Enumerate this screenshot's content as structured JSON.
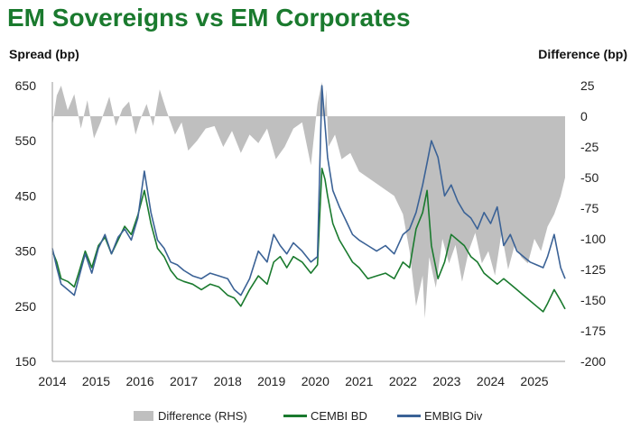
{
  "chart_data": {
    "type": "line",
    "title": "EM Sovereigns vs EM Corporates",
    "ylabel": "Spread (bp)",
    "y2label": "Difference (bp)",
    "ylim": [
      150,
      650
    ],
    "y2lim": [
      -200,
      25
    ],
    "yticks": [
      650,
      550,
      450,
      350,
      250,
      150
    ],
    "y2ticks": [
      25,
      0,
      -25,
      -50,
      -75,
      -100,
      -125,
      -150,
      -175,
      -200
    ],
    "xlim": [
      2014,
      2025.7
    ],
    "xticks": [
      2014,
      2015,
      2016,
      2017,
      2018,
      2019,
      2020,
      2021,
      2022,
      2023,
      2024,
      2025
    ],
    "colors": {
      "difference": "#bfbfbf",
      "cembi": "#1a7a2e",
      "embig": "#3b6296",
      "title": "#1a7a2e"
    },
    "series": [
      {
        "name": "Difference (RHS)",
        "kind": "area",
        "axis": "right",
        "x": [
          2014.0,
          2014.1,
          2014.2,
          2014.35,
          2014.5,
          2014.65,
          2014.8,
          2014.95,
          2015.1,
          2015.3,
          2015.45,
          2015.6,
          2015.75,
          2015.9,
          2016.0,
          2016.15,
          2016.3,
          2016.45,
          2016.6,
          2016.8,
          2016.95,
          2017.1,
          2017.3,
          2017.5,
          2017.7,
          2017.9,
          2018.1,
          2018.3,
          2018.5,
          2018.7,
          2018.9,
          2019.1,
          2019.3,
          2019.5,
          2019.7,
          2019.9,
          2020.05,
          2020.15,
          2020.2,
          2020.25,
          2020.3,
          2020.45,
          2020.6,
          2020.8,
          2021.0,
          2021.2,
          2021.4,
          2021.6,
          2021.8,
          2022.0,
          2022.15,
          2022.3,
          2022.45,
          2022.5,
          2022.6,
          2022.75,
          2022.9,
          2023.05,
          2023.2,
          2023.35,
          2023.5,
          2023.65,
          2023.8,
          2023.95,
          2024.1,
          2024.25,
          2024.4,
          2024.55,
          2024.7,
          2024.85,
          2025.0,
          2025.15,
          2025.3,
          2025.45,
          2025.6,
          2025.7
        ],
        "values": [
          -8,
          17,
          25,
          5,
          18,
          -10,
          13,
          -18,
          -5,
          16,
          -8,
          6,
          12,
          -15,
          -3,
          10,
          -8,
          22,
          5,
          -15,
          -5,
          -28,
          -20,
          -10,
          -8,
          -25,
          -12,
          -30,
          -15,
          -22,
          -10,
          -35,
          -25,
          -10,
          -5,
          -40,
          10,
          28,
          -5,
          22,
          -25,
          -15,
          -35,
          -30,
          -45,
          -50,
          -55,
          -60,
          -65,
          -80,
          -110,
          -155,
          -130,
          -165,
          -115,
          -140,
          -100,
          -120,
          -105,
          -135,
          -110,
          -95,
          -120,
          -110,
          -130,
          -95,
          -125,
          -105,
          -115,
          -120,
          -100,
          -110,
          -90,
          -80,
          -65,
          -50
        ]
      },
      {
        "name": "CEMBI BD",
        "kind": "line",
        "axis": "left",
        "x": [
          2014.0,
          2014.1,
          2014.2,
          2014.35,
          2014.5,
          2014.6,
          2014.75,
          2014.9,
          2015.05,
          2015.2,
          2015.35,
          2015.5,
          2015.65,
          2015.8,
          2015.95,
          2016.1,
          2016.25,
          2016.4,
          2016.55,
          2016.7,
          2016.85,
          2017.0,
          2017.2,
          2017.4,
          2017.6,
          2017.8,
          2018.0,
          2018.15,
          2018.3,
          2018.5,
          2018.7,
          2018.9,
          2019.05,
          2019.2,
          2019.35,
          2019.5,
          2019.7,
          2019.9,
          2020.05,
          2020.15,
          2020.22,
          2020.28,
          2020.4,
          2020.55,
          2020.7,
          2020.85,
          2021.0,
          2021.2,
          2021.4,
          2021.6,
          2021.8,
          2022.0,
          2022.15,
          2022.3,
          2022.45,
          2022.55,
          2022.65,
          2022.8,
          2022.95,
          2023.1,
          2023.25,
          2023.4,
          2023.55,
          2023.7,
          2023.85,
          2024.0,
          2024.15,
          2024.3,
          2024.45,
          2024.6,
          2024.75,
          2024.9,
          2025.05,
          2025.2,
          2025.3,
          2025.45,
          2025.6,
          2025.7
        ],
        "values": [
          350,
          330,
          300,
          295,
          285,
          310,
          350,
          320,
          360,
          375,
          345,
          370,
          395,
          380,
          415,
          460,
          400,
          355,
          340,
          315,
          300,
          295,
          290,
          280,
          290,
          285,
          270,
          265,
          250,
          280,
          305,
          290,
          330,
          340,
          320,
          340,
          330,
          310,
          325,
          500,
          480,
          450,
          400,
          370,
          350,
          330,
          320,
          300,
          305,
          310,
          300,
          330,
          320,
          390,
          420,
          460,
          360,
          300,
          330,
          380,
          370,
          360,
          340,
          330,
          310,
          300,
          290,
          300,
          290,
          280,
          270,
          260,
          250,
          240,
          255,
          280,
          260,
          245
        ]
      },
      {
        "name": "EMBIG Div",
        "kind": "line",
        "axis": "left",
        "x": [
          2014.0,
          2014.1,
          2014.2,
          2014.35,
          2014.5,
          2014.6,
          2014.75,
          2014.9,
          2015.05,
          2015.2,
          2015.35,
          2015.5,
          2015.65,
          2015.8,
          2015.95,
          2016.1,
          2016.25,
          2016.4,
          2016.55,
          2016.7,
          2016.85,
          2017.0,
          2017.2,
          2017.4,
          2017.6,
          2017.8,
          2018.0,
          2018.15,
          2018.3,
          2018.5,
          2018.7,
          2018.9,
          2019.05,
          2019.2,
          2019.35,
          2019.5,
          2019.7,
          2019.9,
          2020.05,
          2020.15,
          2020.22,
          2020.28,
          2020.4,
          2020.55,
          2020.7,
          2020.85,
          2021.0,
          2021.2,
          2021.4,
          2021.6,
          2021.8,
          2022.0,
          2022.15,
          2022.3,
          2022.45,
          2022.55,
          2022.65,
          2022.8,
          2022.95,
          2023.1,
          2023.25,
          2023.4,
          2023.55,
          2023.7,
          2023.85,
          2024.0,
          2024.15,
          2024.3,
          2024.45,
          2024.6,
          2024.75,
          2024.9,
          2025.05,
          2025.2,
          2025.3,
          2025.45,
          2025.6,
          2025.7
        ],
        "values": [
          355,
          320,
          290,
          280,
          270,
          300,
          345,
          310,
          355,
          380,
          345,
          375,
          390,
          370,
          410,
          495,
          420,
          370,
          355,
          330,
          325,
          315,
          305,
          300,
          310,
          305,
          300,
          280,
          270,
          300,
          350,
          330,
          380,
          360,
          345,
          365,
          350,
          330,
          340,
          650,
          580,
          520,
          460,
          430,
          405,
          380,
          370,
          360,
          350,
          360,
          345,
          380,
          390,
          420,
          470,
          510,
          550,
          520,
          450,
          470,
          440,
          420,
          410,
          390,
          420,
          400,
          430,
          360,
          380,
          350,
          340,
          330,
          325,
          320,
          340,
          380,
          320,
          300
        ]
      }
    ],
    "legend": {
      "position": "bottom",
      "entries": [
        "Difference (RHS)",
        "CEMBI BD",
        "EMBIG Div"
      ]
    }
  }
}
